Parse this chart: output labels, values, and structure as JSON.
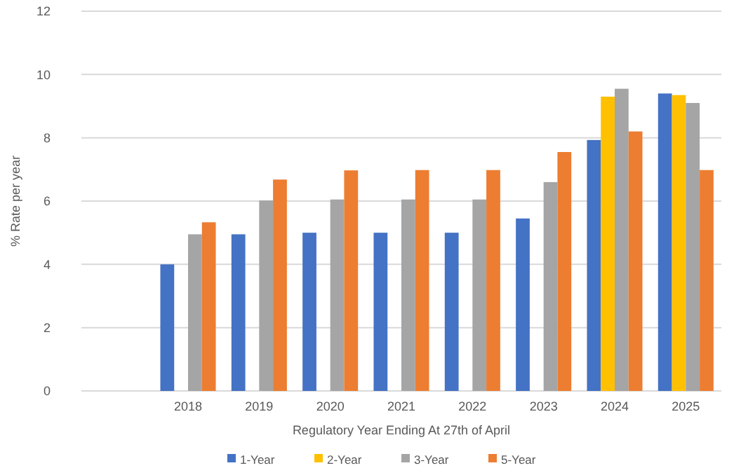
{
  "chart_data": {
    "type": "bar",
    "xlabel": "Regulatory Year Ending At 27th of April",
    "ylabel": "% Rate per year",
    "categories": [
      null,
      "2018",
      "2019",
      "2020",
      "2021",
      "2022",
      "2023",
      "2024",
      "2025"
    ],
    "series": [
      {
        "name": "1-Year",
        "color": "#4472c4",
        "values": [
          null,
          4.0,
          4.95,
          5.0,
          5.0,
          5.0,
          5.45,
          7.93,
          9.4
        ]
      },
      {
        "name": "2-Year",
        "color": "#ffc000",
        "values": [
          null,
          null,
          null,
          null,
          null,
          null,
          null,
          9.3,
          9.35
        ]
      },
      {
        "name": "3-Year",
        "color": "#a5a5a5",
        "values": [
          null,
          4.95,
          6.02,
          6.05,
          6.05,
          6.05,
          6.6,
          9.55,
          9.1
        ]
      },
      {
        "name": "5-Year",
        "color": "#ed7d31",
        "values": [
          null,
          5.33,
          6.68,
          6.97,
          6.98,
          6.98,
          7.55,
          8.2,
          6.98
        ]
      }
    ],
    "ylim": [
      0,
      12
    ],
    "yticks": [
      0,
      2,
      4,
      6,
      8,
      10,
      12
    ],
    "grid": "y",
    "legend": "bottom"
  }
}
